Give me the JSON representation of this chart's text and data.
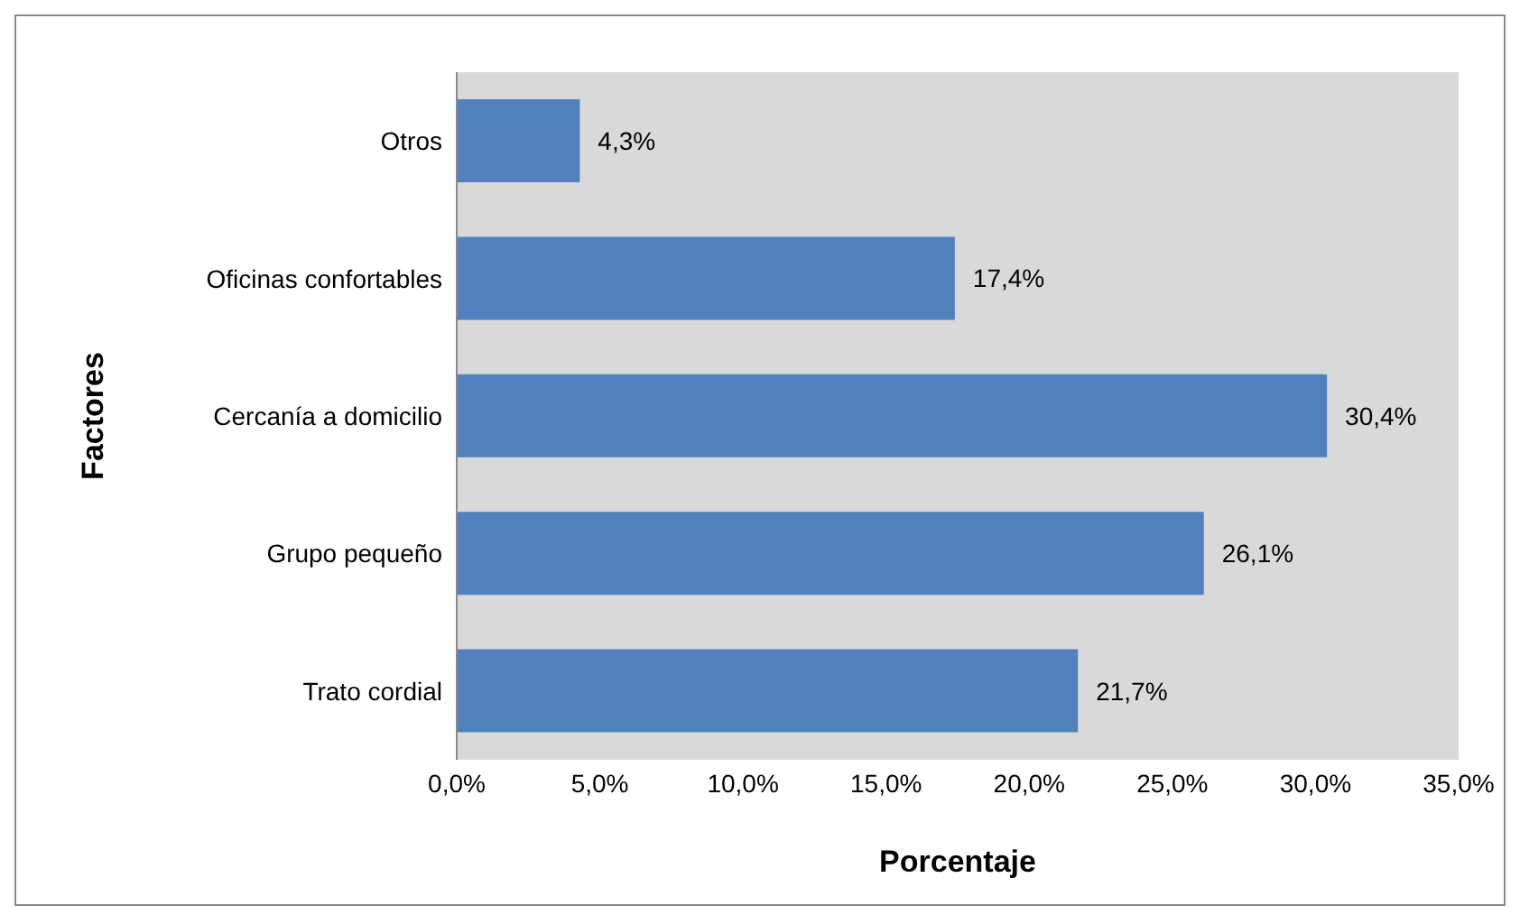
{
  "chart_data": {
    "type": "bar",
    "orientation": "horizontal",
    "xlabel": "Porcentaje",
    "ylabel": "Factores",
    "categories": [
      "Otros",
      "Oficinas confortables",
      "Cercanía a domicilio",
      "Grupo pequeño",
      "Trato cordial"
    ],
    "values": [
      4.3,
      17.4,
      30.4,
      26.1,
      21.7
    ],
    "value_labels": [
      "4,3%",
      "17,4%",
      "30,4%",
      "26,1%",
      "21,7%"
    ],
    "color": "#4f81bd",
    "xlim": [
      0,
      35
    ],
    "xticks": [
      {
        "value": 0,
        "label": "0,0%"
      },
      {
        "value": 5,
        "label": "5,0%"
      },
      {
        "value": 10,
        "label": "10,0%"
      },
      {
        "value": 15,
        "label": "15,0%"
      },
      {
        "value": 20,
        "label": "20,0%"
      },
      {
        "value": 25,
        "label": "25,0%"
      },
      {
        "value": 30,
        "label": "30,0%"
      },
      {
        "value": 35,
        "label": "35,0%"
      }
    ],
    "grid": false,
    "legend": false
  }
}
